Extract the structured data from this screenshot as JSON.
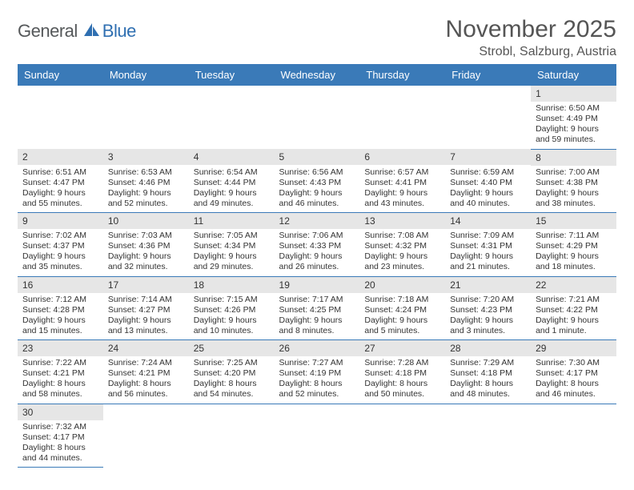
{
  "logo": {
    "part1": "General",
    "part2": "Blue"
  },
  "title": "November 2025",
  "location": "Strobl, Salzburg, Austria",
  "colors": {
    "header_bg": "#3a7ab8",
    "grid_line": "#3a7ab8",
    "daynum_bg": "#e6e6e6",
    "text": "#333333",
    "title_text": "#555555"
  },
  "dayHeaders": [
    "Sunday",
    "Monday",
    "Tuesday",
    "Wednesday",
    "Thursday",
    "Friday",
    "Saturday"
  ],
  "weeks": [
    [
      null,
      null,
      null,
      null,
      null,
      null,
      {
        "n": "1",
        "sr": "6:50 AM",
        "ss": "4:49 PM",
        "dl": "9 hours and 59 minutes."
      }
    ],
    [
      {
        "n": "2",
        "sr": "6:51 AM",
        "ss": "4:47 PM",
        "dl": "9 hours and 55 minutes."
      },
      {
        "n": "3",
        "sr": "6:53 AM",
        "ss": "4:46 PM",
        "dl": "9 hours and 52 minutes."
      },
      {
        "n": "4",
        "sr": "6:54 AM",
        "ss": "4:44 PM",
        "dl": "9 hours and 49 minutes."
      },
      {
        "n": "5",
        "sr": "6:56 AM",
        "ss": "4:43 PM",
        "dl": "9 hours and 46 minutes."
      },
      {
        "n": "6",
        "sr": "6:57 AM",
        "ss": "4:41 PM",
        "dl": "9 hours and 43 minutes."
      },
      {
        "n": "7",
        "sr": "6:59 AM",
        "ss": "4:40 PM",
        "dl": "9 hours and 40 minutes."
      },
      {
        "n": "8",
        "sr": "7:00 AM",
        "ss": "4:38 PM",
        "dl": "9 hours and 38 minutes."
      }
    ],
    [
      {
        "n": "9",
        "sr": "7:02 AM",
        "ss": "4:37 PM",
        "dl": "9 hours and 35 minutes."
      },
      {
        "n": "10",
        "sr": "7:03 AM",
        "ss": "4:36 PM",
        "dl": "9 hours and 32 minutes."
      },
      {
        "n": "11",
        "sr": "7:05 AM",
        "ss": "4:34 PM",
        "dl": "9 hours and 29 minutes."
      },
      {
        "n": "12",
        "sr": "7:06 AM",
        "ss": "4:33 PM",
        "dl": "9 hours and 26 minutes."
      },
      {
        "n": "13",
        "sr": "7:08 AM",
        "ss": "4:32 PM",
        "dl": "9 hours and 23 minutes."
      },
      {
        "n": "14",
        "sr": "7:09 AM",
        "ss": "4:31 PM",
        "dl": "9 hours and 21 minutes."
      },
      {
        "n": "15",
        "sr": "7:11 AM",
        "ss": "4:29 PM",
        "dl": "9 hours and 18 minutes."
      }
    ],
    [
      {
        "n": "16",
        "sr": "7:12 AM",
        "ss": "4:28 PM",
        "dl": "9 hours and 15 minutes."
      },
      {
        "n": "17",
        "sr": "7:14 AM",
        "ss": "4:27 PM",
        "dl": "9 hours and 13 minutes."
      },
      {
        "n": "18",
        "sr": "7:15 AM",
        "ss": "4:26 PM",
        "dl": "9 hours and 10 minutes."
      },
      {
        "n": "19",
        "sr": "7:17 AM",
        "ss": "4:25 PM",
        "dl": "9 hours and 8 minutes."
      },
      {
        "n": "20",
        "sr": "7:18 AM",
        "ss": "4:24 PM",
        "dl": "9 hours and 5 minutes."
      },
      {
        "n": "21",
        "sr": "7:20 AM",
        "ss": "4:23 PM",
        "dl": "9 hours and 3 minutes."
      },
      {
        "n": "22",
        "sr": "7:21 AM",
        "ss": "4:22 PM",
        "dl": "9 hours and 1 minute."
      }
    ],
    [
      {
        "n": "23",
        "sr": "7:22 AM",
        "ss": "4:21 PM",
        "dl": "8 hours and 58 minutes."
      },
      {
        "n": "24",
        "sr": "7:24 AM",
        "ss": "4:21 PM",
        "dl": "8 hours and 56 minutes."
      },
      {
        "n": "25",
        "sr": "7:25 AM",
        "ss": "4:20 PM",
        "dl": "8 hours and 54 minutes."
      },
      {
        "n": "26",
        "sr": "7:27 AM",
        "ss": "4:19 PM",
        "dl": "8 hours and 52 minutes."
      },
      {
        "n": "27",
        "sr": "7:28 AM",
        "ss": "4:18 PM",
        "dl": "8 hours and 50 minutes."
      },
      {
        "n": "28",
        "sr": "7:29 AM",
        "ss": "4:18 PM",
        "dl": "8 hours and 48 minutes."
      },
      {
        "n": "29",
        "sr": "7:30 AM",
        "ss": "4:17 PM",
        "dl": "8 hours and 46 minutes."
      }
    ],
    [
      {
        "n": "30",
        "sr": "7:32 AM",
        "ss": "4:17 PM",
        "dl": "8 hours and 44 minutes."
      },
      null,
      null,
      null,
      null,
      null,
      null
    ]
  ],
  "labels": {
    "sunrise": "Sunrise: ",
    "sunset": "Sunset: ",
    "daylight": "Daylight: "
  }
}
